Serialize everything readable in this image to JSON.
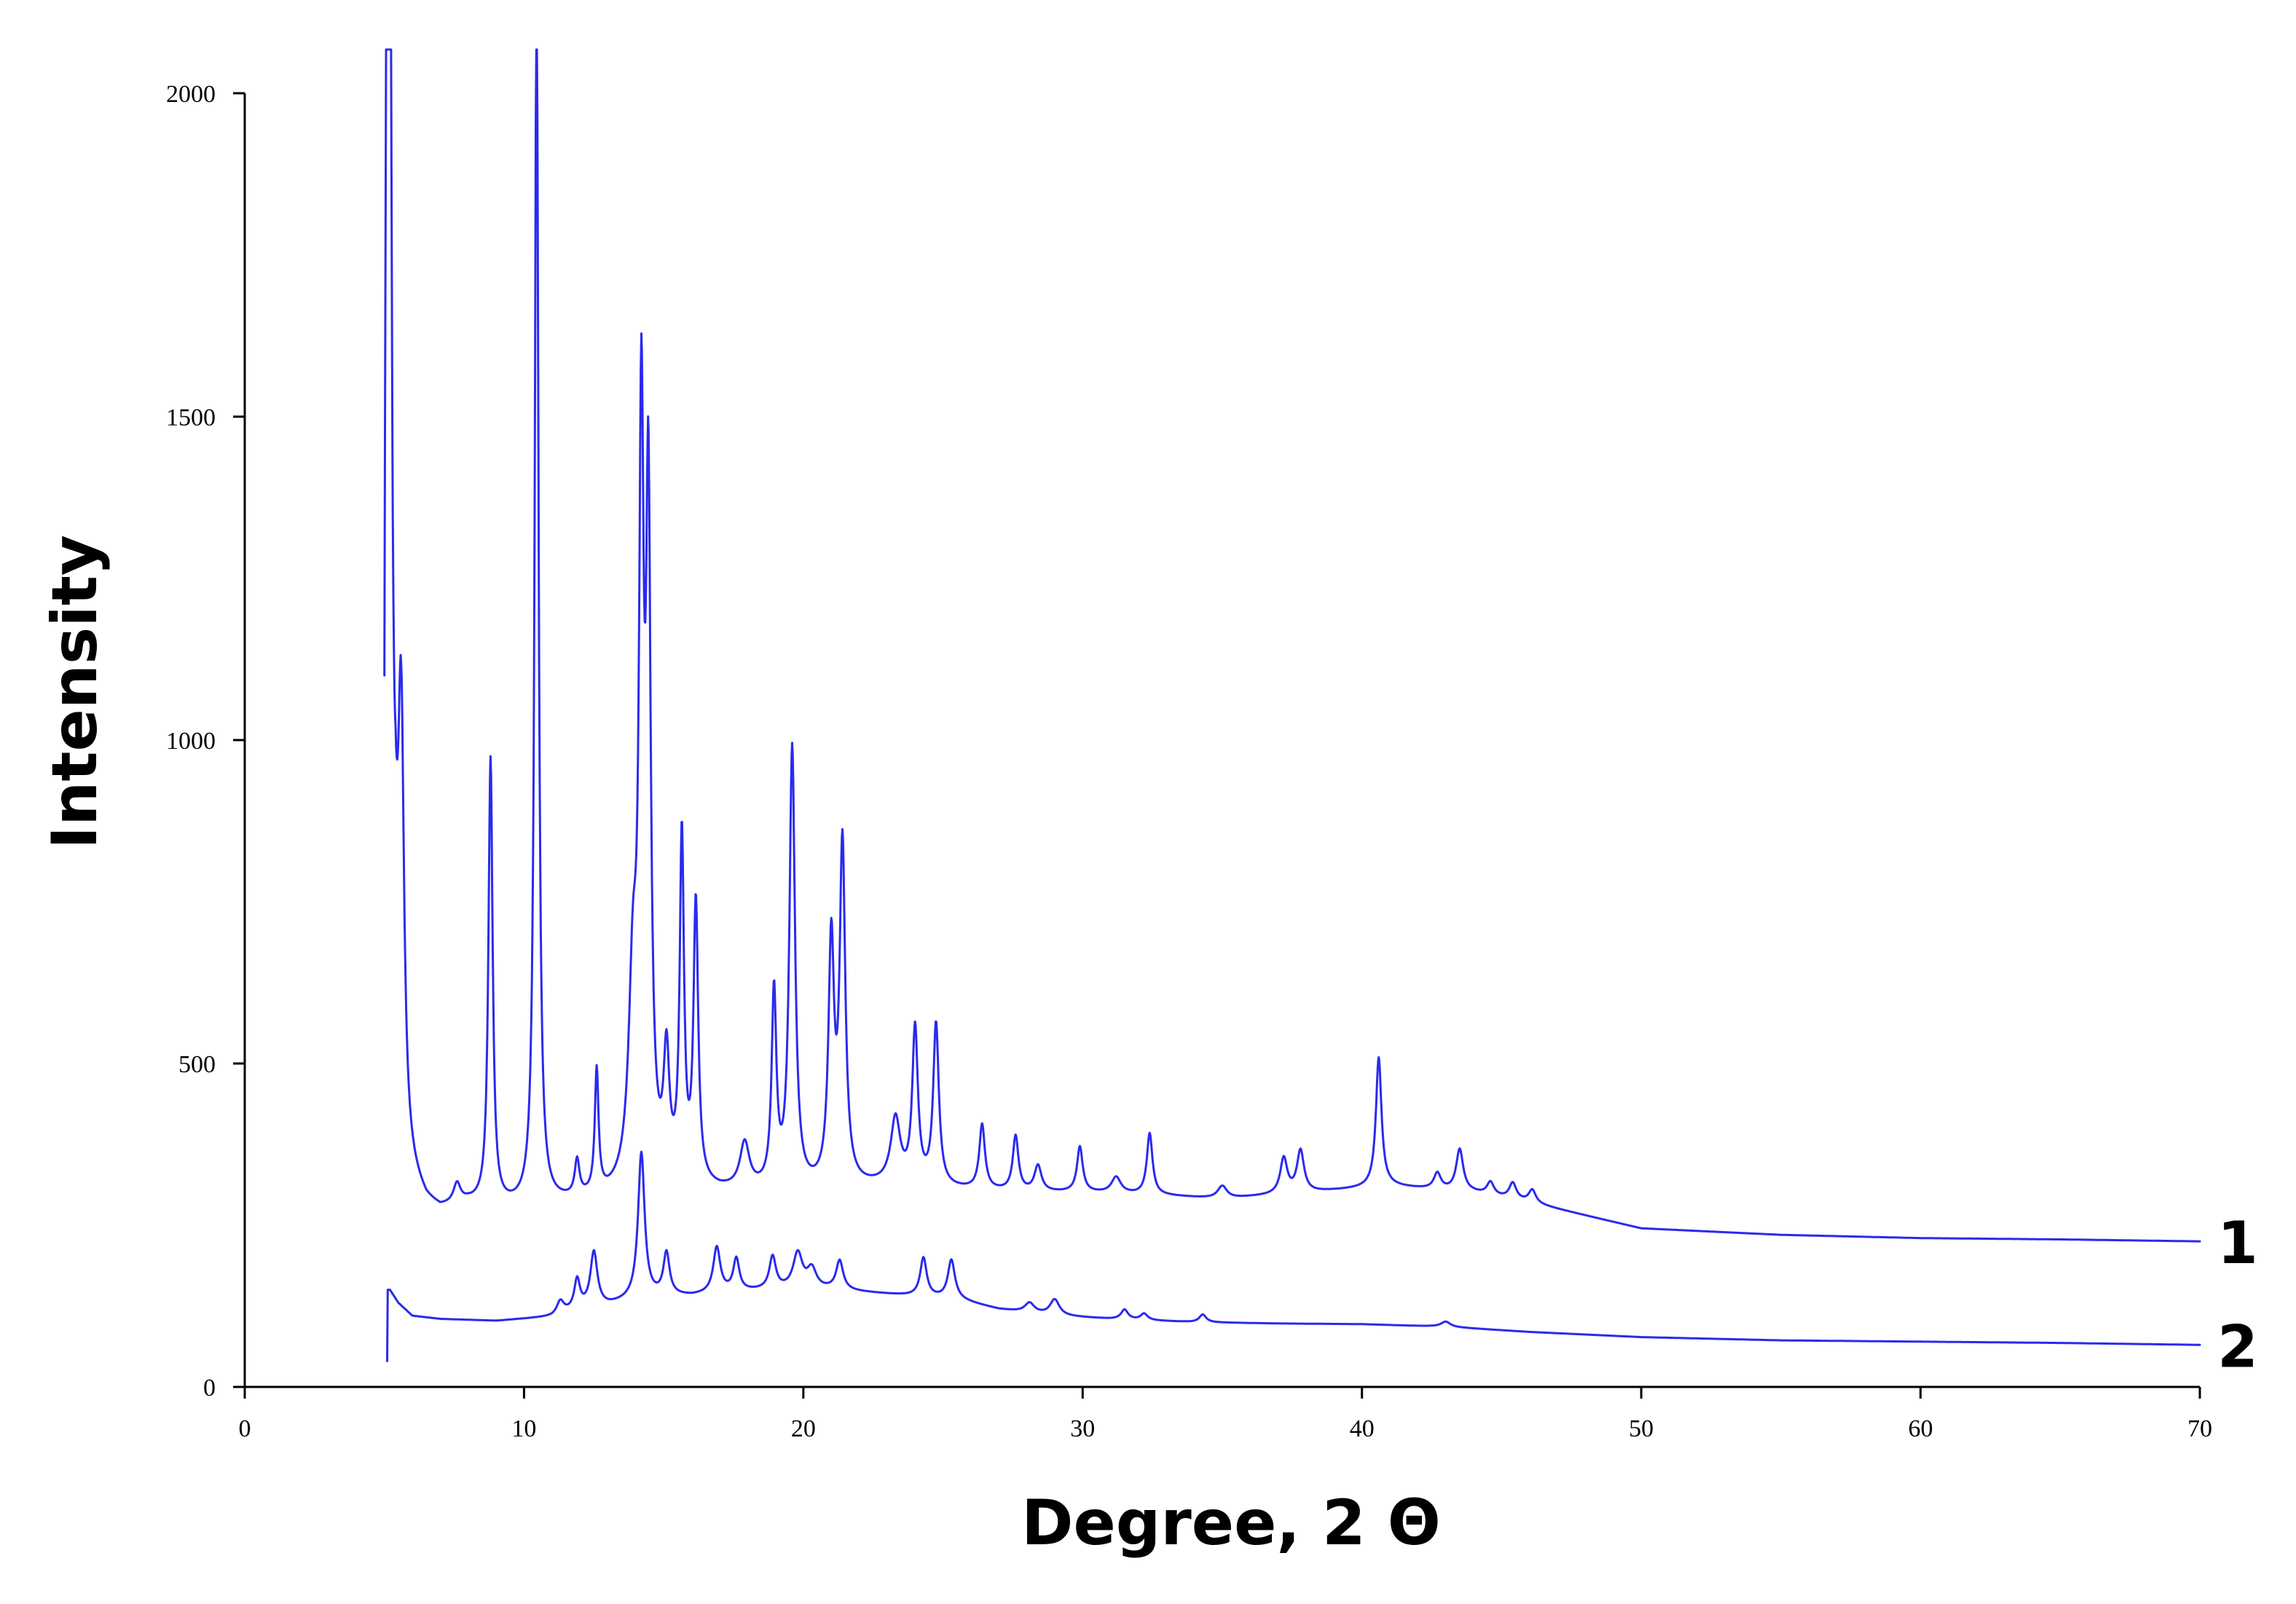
{
  "chart_data": {
    "type": "line",
    "title": "",
    "xlabel": "Degree, 2 Θ",
    "ylabel": "Intensity",
    "xlim": [
      0,
      70
    ],
    "ylim": [
      0,
      2000
    ],
    "x_ticks": [
      0,
      10,
      20,
      30,
      40,
      50,
      60,
      70
    ],
    "y_ticks": [
      0,
      500,
      1000,
      1500,
      2000
    ],
    "grid": false,
    "legend": "none",
    "line_color": "#2a2aee",
    "series": [
      {
        "name": "1",
        "start": 5.0,
        "start_value": 1100,
        "end": 70,
        "baseline": [
          [
            5.4,
            560
          ],
          [
            5.6,
            330
          ],
          [
            6.0,
            310
          ],
          [
            6.5,
            280
          ],
          [
            7.0,
            270
          ],
          [
            8.0,
            280
          ],
          [
            9.0,
            275
          ],
          [
            10.0,
            275
          ],
          [
            11.0,
            280
          ],
          [
            12.0,
            285
          ],
          [
            13.0,
            290
          ],
          [
            14.0,
            300
          ],
          [
            15.0,
            310
          ],
          [
            17.0,
            300
          ],
          [
            20.0,
            300
          ],
          [
            23.0,
            310
          ],
          [
            25.0,
            305
          ],
          [
            28.0,
            300
          ],
          [
            30.0,
            300
          ],
          [
            33.0,
            295
          ],
          [
            35.0,
            290
          ],
          [
            38.0,
            300
          ],
          [
            41.0,
            310
          ],
          [
            44.0,
            300
          ],
          [
            46.0,
            285
          ],
          [
            48.0,
            265
          ],
          [
            50.0,
            245
          ],
          [
            55.0,
            235
          ],
          [
            60.0,
            230
          ],
          [
            65.0,
            228
          ],
          [
            70.0,
            225
          ]
        ],
        "peaks": [
          [
            5.15,
            5000,
            0.06
          ],
          [
            5.6,
            700,
            0.12
          ],
          [
            7.6,
            30,
            0.15
          ],
          [
            8.8,
            690,
            0.09
          ],
          [
            10.45,
            1900,
            0.08
          ],
          [
            11.9,
            55,
            0.1
          ],
          [
            12.6,
            190,
            0.08
          ],
          [
            13.9,
            300,
            0.18
          ],
          [
            14.2,
            1100,
            0.1
          ],
          [
            14.45,
            1000,
            0.1
          ],
          [
            15.1,
            180,
            0.12
          ],
          [
            15.65,
            530,
            0.09
          ],
          [
            16.15,
            430,
            0.1
          ],
          [
            17.9,
            70,
            0.2
          ],
          [
            18.95,
            300,
            0.1
          ],
          [
            19.6,
            680,
            0.12
          ],
          [
            21.0,
            370,
            0.12
          ],
          [
            21.4,
            520,
            0.12
          ],
          [
            23.3,
            100,
            0.2
          ],
          [
            24.0,
            240,
            0.12
          ],
          [
            24.75,
            250,
            0.12
          ],
          [
            26.4,
            100,
            0.12
          ],
          [
            27.6,
            85,
            0.12
          ],
          [
            28.4,
            40,
            0.15
          ],
          [
            29.9,
            70,
            0.12
          ],
          [
            31.2,
            25,
            0.2
          ],
          [
            32.4,
            95,
            0.12
          ],
          [
            35.0,
            20,
            0.2
          ],
          [
            37.2,
            55,
            0.15
          ],
          [
            37.8,
            65,
            0.15
          ],
          [
            40.6,
            200,
            0.12
          ],
          [
            42.7,
            25,
            0.15
          ],
          [
            43.5,
            65,
            0.15
          ],
          [
            44.6,
            20,
            0.15
          ],
          [
            45.4,
            25,
            0.15
          ],
          [
            46.1,
            20,
            0.15
          ]
        ]
      },
      {
        "name": "2",
        "start": 5.1,
        "start_value": 40,
        "end": 70,
        "baseline": [
          [
            5.2,
            150
          ],
          [
            5.5,
            130
          ],
          [
            6.0,
            110
          ],
          [
            7.0,
            105
          ],
          [
            9.0,
            102
          ],
          [
            11.0,
            108
          ],
          [
            12.0,
            120
          ],
          [
            13.0,
            125
          ],
          [
            14.0,
            135
          ],
          [
            15.0,
            140
          ],
          [
            16.0,
            140
          ],
          [
            17.0,
            145
          ],
          [
            19.0,
            150
          ],
          [
            21.0,
            150
          ],
          [
            22.5,
            145
          ],
          [
            24.0,
            140
          ],
          [
            25.5,
            135
          ],
          [
            27.0,
            120
          ],
          [
            29.0,
            110
          ],
          [
            31.0,
            105
          ],
          [
            34.0,
            100
          ],
          [
            37.0,
            98
          ],
          [
            40.0,
            97
          ],
          [
            43.0,
            93
          ],
          [
            46.0,
            85
          ],
          [
            50.0,
            77
          ],
          [
            55.0,
            72
          ],
          [
            60.0,
            70
          ],
          [
            65.0,
            68
          ],
          [
            70.0,
            65
          ]
        ],
        "peaks": [
          [
            11.3,
            20,
            0.15
          ],
          [
            11.9,
            45,
            0.12
          ],
          [
            12.5,
            85,
            0.15
          ],
          [
            14.2,
            225,
            0.14
          ],
          [
            15.1,
            65,
            0.13
          ],
          [
            16.9,
            70,
            0.15
          ],
          [
            17.6,
            50,
            0.13
          ],
          [
            18.9,
            50,
            0.14
          ],
          [
            19.8,
            55,
            0.2
          ],
          [
            20.3,
            30,
            0.2
          ],
          [
            21.3,
            45,
            0.15
          ],
          [
            24.3,
            60,
            0.14
          ],
          [
            25.3,
            60,
            0.15
          ],
          [
            28.1,
            15,
            0.2
          ],
          [
            29.0,
            25,
            0.2
          ],
          [
            31.5,
            15,
            0.15
          ],
          [
            32.2,
            10,
            0.15
          ],
          [
            34.3,
            12,
            0.15
          ],
          [
            43.0,
            8,
            0.2
          ]
        ]
      }
    ]
  }
}
